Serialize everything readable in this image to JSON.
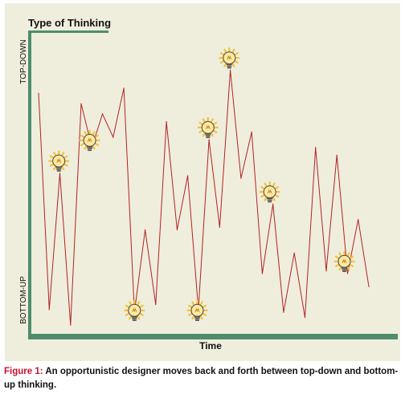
{
  "chart_data": {
    "type": "line",
    "title": "Type of Thinking",
    "xlabel": "Time",
    "ylabel_top": "TOP-DOWN",
    "ylabel_bottom": "BOTTOM-UP",
    "ylim": [
      0,
      100
    ],
    "xlim": [
      0,
      33
    ],
    "series": [
      {
        "color": "#b22222",
        "points": [
          [
            0,
            89
          ],
          [
            1,
            5
          ],
          [
            2,
            58
          ],
          [
            3,
            -1
          ],
          [
            4,
            85
          ],
          [
            5,
            68
          ],
          [
            6,
            81
          ],
          [
            7,
            72
          ],
          [
            8,
            91
          ],
          [
            9,
            4
          ],
          [
            10,
            36
          ],
          [
            11,
            7
          ],
          [
            12,
            78
          ],
          [
            13,
            36
          ],
          [
            14,
            57
          ],
          [
            15,
            5
          ],
          [
            16,
            71
          ],
          [
            17,
            37
          ],
          [
            18,
            98
          ],
          [
            19,
            56
          ],
          [
            20,
            74
          ],
          [
            21,
            19
          ],
          [
            22,
            46
          ],
          [
            23,
            4
          ],
          [
            24,
            27
          ],
          [
            25,
            2
          ],
          [
            26,
            68
          ],
          [
            27,
            20
          ],
          [
            28,
            65
          ],
          [
            29,
            19
          ],
          [
            30,
            40
          ],
          [
            31,
            14
          ]
        ]
      }
    ],
    "insights": [
      {
        "x": 1.9,
        "y": 59,
        "icon": "lightbulb-icon"
      },
      {
        "x": 4.8,
        "y": 67,
        "icon": "lightbulb-icon"
      },
      {
        "x": 9.0,
        "y": 1,
        "icon": "lightbulb-icon"
      },
      {
        "x": 14.9,
        "y": 1,
        "icon": "lightbulb-icon"
      },
      {
        "x": 15.9,
        "y": 72,
        "icon": "lightbulb-icon"
      },
      {
        "x": 17.9,
        "y": 99,
        "icon": "lightbulb-icon"
      },
      {
        "x": 21.7,
        "y": 47,
        "icon": "lightbulb-icon"
      },
      {
        "x": 28.7,
        "y": 20,
        "icon": "lightbulb-icon"
      }
    ],
    "colors": {
      "axis": "#4e8c6c",
      "line": "#b22222",
      "panel": "#efeedd"
    }
  },
  "caption": {
    "label": "Figure 1:",
    "text": " An opportunistic designer moves back and forth between top-down and bottom-up thinking."
  }
}
